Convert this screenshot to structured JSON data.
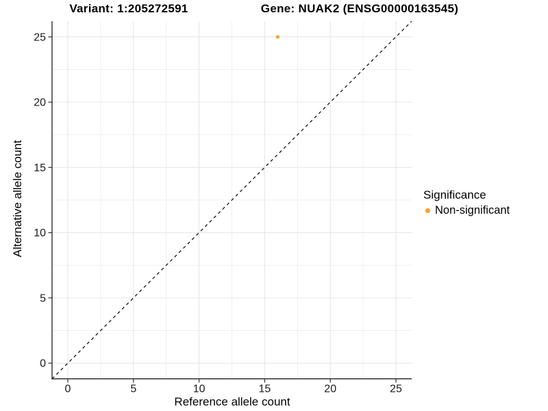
{
  "chart_data": {
    "type": "scatter",
    "title_left": "Variant: 1:205272591",
    "title_right": "Gene: NUAK2 (ENSG00000163545)",
    "xlabel": "Reference allele count",
    "ylabel": "Alternative allele count",
    "xlim": [
      -1.2,
      26.2
    ],
    "ylim": [
      -1.2,
      26.2
    ],
    "xticks": [
      0,
      5,
      10,
      15,
      20,
      25
    ],
    "yticks": [
      0,
      5,
      10,
      15,
      20,
      25
    ],
    "xminor": [
      2.5,
      7.5,
      12.5,
      17.5,
      22.5
    ],
    "yminor": [
      2.5,
      7.5,
      12.5,
      17.5,
      22.5
    ],
    "grid": true,
    "reference_line": {
      "type": "identity",
      "slope": 1,
      "intercept": 0,
      "style": "dashed",
      "color": "#000000"
    },
    "series": [
      {
        "name": "Non-significant",
        "color": "#F9A12B",
        "point_radius": 2.6,
        "points": [
          {
            "x": 16,
            "y": 25
          }
        ]
      }
    ],
    "legend": {
      "title": "Significance",
      "position": "right",
      "entries": [
        {
          "label": "Non-significant",
          "color": "#F9A12B"
        }
      ]
    }
  },
  "colors": {
    "background": "#FFFFFF",
    "grid_major": "#E6E6E6",
    "grid_minor": "#EFEFEF",
    "axis_line": "#2E2E2E",
    "tick_mark": "#2E2E2E",
    "tick_label": "#1A1A1A",
    "text": "#000000"
  }
}
